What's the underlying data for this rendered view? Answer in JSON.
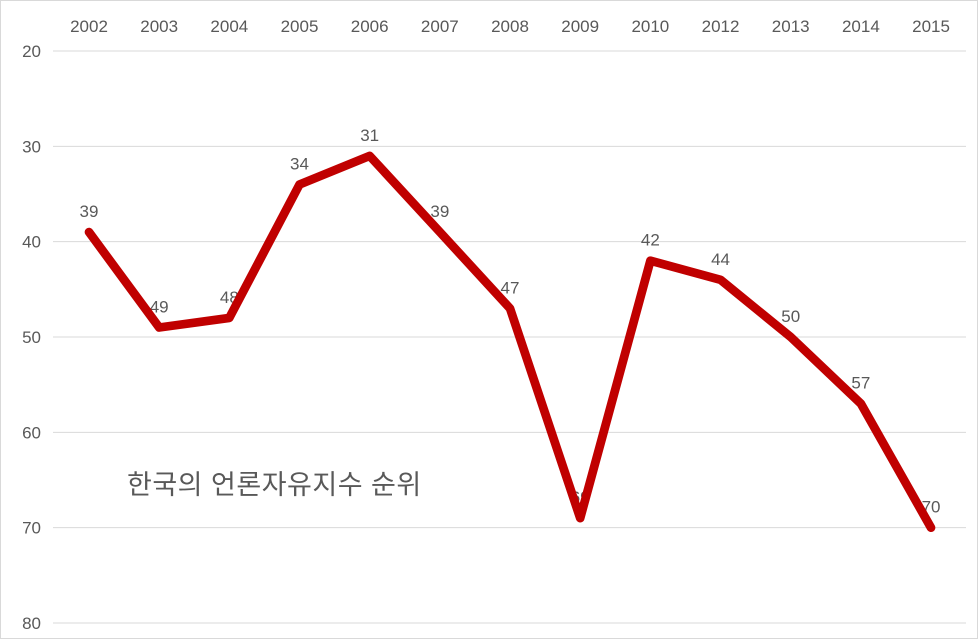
{
  "chart_data": {
    "type": "line",
    "title": "한국의 언론자유지수 순위",
    "categories": [
      "2002",
      "2003",
      "2004",
      "2005",
      "2006",
      "2007",
      "2008",
      "2009",
      "2010",
      "2012",
      "2013",
      "2014",
      "2015"
    ],
    "series": [
      {
        "name": "한국의 언론자유지수 순위",
        "values": [
          39,
          49,
          48,
          34,
          31,
          39,
          47,
          69,
          42,
          44,
          50,
          57,
          70
        ]
      }
    ],
    "xlabel": "",
    "ylabel": "",
    "x_axis": {
      "position": "top",
      "tick_labels": [
        "2002",
        "2003",
        "2004",
        "2005",
        "2006",
        "2007",
        "2008",
        "2009",
        "2010",
        "2012",
        "2013",
        "2014",
        "2015"
      ]
    },
    "y_axis": {
      "min": 20,
      "max": 80,
      "step": 10,
      "direction": "reversed-values-increase-downward",
      "ticks": [
        20,
        30,
        40,
        50,
        60,
        70,
        80
      ]
    },
    "grid": true,
    "legend": "none",
    "markers": false,
    "data_labels_visible": true,
    "colors": {
      "line": "#C00000",
      "gridline": "#D9D9D9",
      "tick_label": "#595959",
      "data_label": "#595959",
      "title": "#595959",
      "background": "#FFFFFF",
      "border": "#D9D9D9"
    }
  }
}
